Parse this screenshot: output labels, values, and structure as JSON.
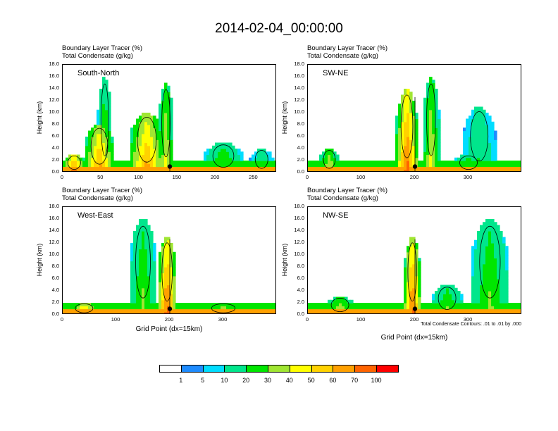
{
  "title": "2014-02-04_00:00:00",
  "colors": {
    "levels": [
      "#ffffff",
      "#1e8cff",
      "#00ddff",
      "#00e68c",
      "#00e600",
      "#a0e632",
      "#ffff00",
      "#ffd200",
      "#ffa000",
      "#ff6400",
      "#ff0000"
    ],
    "contour": "#000000"
  },
  "colorbar": {
    "labels": [
      "1",
      "5",
      "10",
      "20",
      "30",
      "40",
      "50",
      "60",
      "70",
      "100"
    ]
  },
  "x_axis_label": "Grid Point (dx=15km)",
  "y_axis_label": "Height (km)",
  "contour_note": "Total Condensate Contours: .01 to .01 by .000",
  "chart_data": [
    {
      "type": "heatmap",
      "name": "South-North",
      "subtitle_line1": "Boundary Layer Tracer    (%)",
      "subtitle_line2": "Total Condensate    (g/kg)",
      "xlim": [
        0,
        280
      ],
      "ylim": [
        0,
        18
      ],
      "xticks": [
        "0",
        "50",
        "100",
        "150",
        "200",
        "250"
      ],
      "yticks": [
        "0.0",
        "2.0",
        "4.0",
        "6.0",
        "8.0",
        "10.0",
        "12.0",
        "14.0",
        "16.0",
        "18.0"
      ],
      "marker_x": 140,
      "plumes": [
        {
          "x": 15,
          "w": 30,
          "top": 3,
          "v": 70
        },
        {
          "x": 48,
          "w": 40,
          "top": 8,
          "v": 60
        },
        {
          "x": 55,
          "w": 18,
          "top": 16,
          "v": 30
        },
        {
          "x": 110,
          "w": 45,
          "top": 10,
          "v": 60
        },
        {
          "x": 135,
          "w": 20,
          "top": 15,
          "v": 40
        },
        {
          "x": 210,
          "w": 50,
          "top": 5,
          "v": 30
        },
        {
          "x": 260,
          "w": 30,
          "top": 4,
          "v": 20
        }
      ]
    },
    {
      "type": "heatmap",
      "name": "SW-NE",
      "subtitle_line1": "Boundary Layer Tracer    (%)",
      "subtitle_line2": "Total Condensate    (g/kg)",
      "xlim": [
        0,
        400
      ],
      "ylim": [
        0,
        18
      ],
      "xticks": [
        "0",
        "100",
        "200",
        "300"
      ],
      "yticks": [
        "0.0",
        "2.0",
        "4.0",
        "6.0",
        "8.0",
        "10.0",
        "12.0",
        "14.0",
        "16.0",
        "18.0"
      ],
      "marker_x": 200,
      "plumes": [
        {
          "x": 40,
          "w": 40,
          "top": 4,
          "v": 40
        },
        {
          "x": 185,
          "w": 40,
          "top": 14,
          "v": 70
        },
        {
          "x": 230,
          "w": 30,
          "top": 16,
          "v": 40
        },
        {
          "x": 300,
          "w": 60,
          "top": 3,
          "v": 30
        },
        {
          "x": 320,
          "w": 60,
          "top": 11,
          "v": 20
        }
      ]
    },
    {
      "type": "heatmap",
      "name": "West-East",
      "subtitle_line1": "Boundary Layer Tracer    (%)",
      "subtitle_line2": "Total Condensate    (g/kg)",
      "xlim": [
        0,
        400
      ],
      "ylim": [
        0,
        18
      ],
      "xticks": [
        "0",
        "100",
        "200",
        "300"
      ],
      "yticks": [
        "0.0",
        "2.0",
        "4.0",
        "6.0",
        "8.0",
        "10.0",
        "12.0",
        "14.0",
        "16.0",
        "18.0"
      ],
      "marker_x": 200,
      "plumes": [
        {
          "x": 40,
          "w": 60,
          "top": 2,
          "v": 60
        },
        {
          "x": 195,
          "w": 35,
          "top": 13,
          "v": 70
        },
        {
          "x": 150,
          "w": 50,
          "top": 16,
          "v": 30
        },
        {
          "x": 300,
          "w": 80,
          "top": 2,
          "v": 40
        }
      ]
    },
    {
      "type": "heatmap",
      "name": "NW-SE",
      "subtitle_line1": "Boundary Layer Tracer    (%)",
      "subtitle_line2": "Total Condensate    (g/kg)",
      "xlim": [
        0,
        400
      ],
      "ylim": [
        0,
        18
      ],
      "xticks": [
        "0",
        "100",
        "200",
        "300"
      ],
      "yticks": [
        "0.0",
        "2.0",
        "4.0",
        "6.0",
        "8.0",
        "10.0",
        "12.0",
        "14.0",
        "16.0",
        "18.0"
      ],
      "marker_x": 200,
      "plumes": [
        {
          "x": 60,
          "w": 60,
          "top": 3,
          "v": 40
        },
        {
          "x": 195,
          "w": 30,
          "top": 13,
          "v": 70
        },
        {
          "x": 260,
          "w": 60,
          "top": 5,
          "v": 30
        },
        {
          "x": 340,
          "w": 70,
          "top": 16,
          "v": 30
        }
      ]
    }
  ]
}
